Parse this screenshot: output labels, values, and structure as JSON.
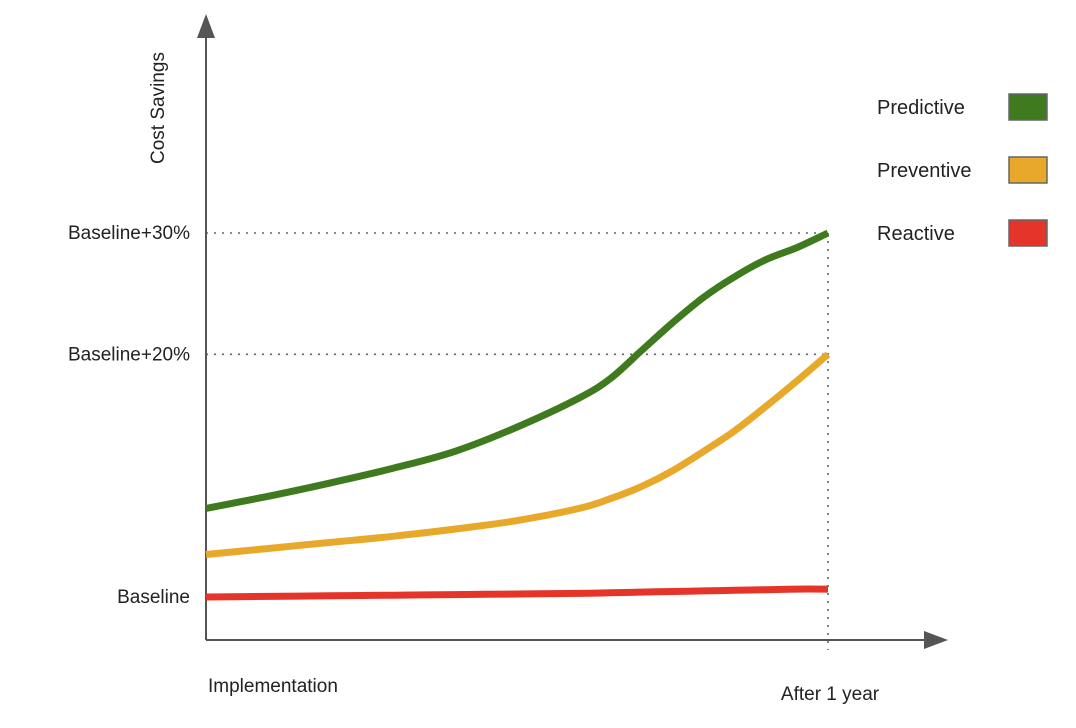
{
  "chart_data": {
    "type": "line",
    "title": "",
    "ylabel": "Cost Savings",
    "xlabel": "",
    "x_tick_labels": {
      "start": "Implementation",
      "end": "After 1 year"
    },
    "x": [
      0,
      0.1,
      0.2,
      0.3,
      0.4,
      0.5,
      0.6,
      0.65,
      0.7,
      0.75,
      0.8,
      0.85,
      0.9,
      0.95,
      1.0
    ],
    "y_ticks": [
      {
        "value": 0,
        "label": "Baseline"
      },
      {
        "value": 20,
        "label": "Baseline+20%"
      },
      {
        "value": 30,
        "label": "Baseline+30%"
      }
    ],
    "ylim": [
      -3,
      40
    ],
    "xlim": [
      0,
      1.2
    ],
    "reference_lines": [
      20,
      30
    ],
    "series": [
      {
        "name": "Predictive",
        "color": "#3f7a1f",
        "values": [
          7.3,
          8.3,
          9.4,
          10.6,
          12.0,
          14.0,
          16.4,
          18.0,
          20.3,
          22.6,
          24.7,
          26.4,
          27.8,
          28.8,
          30.0
        ]
      },
      {
        "name": "Preventive",
        "color": "#e8a92b",
        "values": [
          3.5,
          4.0,
          4.5,
          5.0,
          5.6,
          6.3,
          7.3,
          8.1,
          9.1,
          10.4,
          12.0,
          13.7,
          15.7,
          17.8,
          20.0
        ]
      },
      {
        "name": "Reactive",
        "color": "#e5352b",
        "values": [
          0.0,
          0.05,
          0.1,
          0.15,
          0.2,
          0.25,
          0.3,
          0.35,
          0.4,
          0.45,
          0.5,
          0.55,
          0.6,
          0.65,
          0.65
        ]
      }
    ],
    "grid": false,
    "legend_position": "top-right"
  }
}
